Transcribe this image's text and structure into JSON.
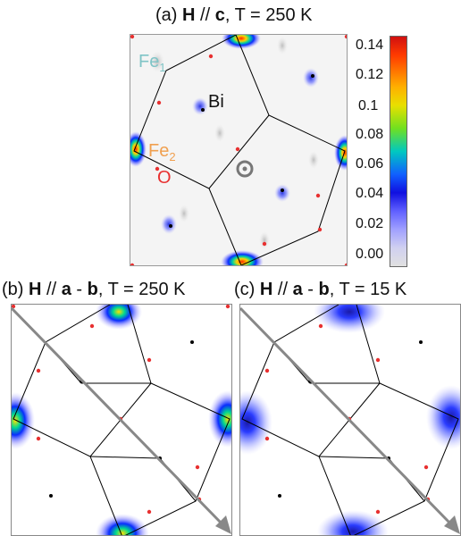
{
  "chart_data": [
    {
      "type": "heatmap",
      "title_prefix": "(a) ",
      "title_field": "H",
      "title_mid": " // ",
      "title_dir": "c",
      "title_suffix": ", T = 250 K",
      "colorbar": {
        "ticks": [
          "0.14",
          "0.12",
          "0.1",
          "0.08",
          "0.06",
          "0.04",
          "0.02",
          "0.00"
        ],
        "range": [
          0,
          0.15
        ]
      },
      "labels": {
        "fe1": "Fe",
        "fe1_sub": "1",
        "fe2": "Fe",
        "fe2_sub": "2",
        "bi": "Bi",
        "o": "O"
      },
      "colors": {
        "fe1": "#7fc4c6",
        "fe2": "#f0a050",
        "o": "#e83030",
        "bi": "#000000"
      }
    },
    {
      "type": "heatmap",
      "title_prefix": "(b) ",
      "title_field": "H",
      "title_mid": " // ",
      "title_dir1": "a",
      "title_dash": " - ",
      "title_dir2": "b",
      "title_suffix": ", T = 250 K"
    },
    {
      "type": "heatmap",
      "title_prefix": "(c) ",
      "title_field": "H",
      "title_mid": " // ",
      "title_dir1": "a",
      "title_dash": " - ",
      "title_dir2": "b",
      "title_suffix": ", T = 15 K"
    }
  ]
}
